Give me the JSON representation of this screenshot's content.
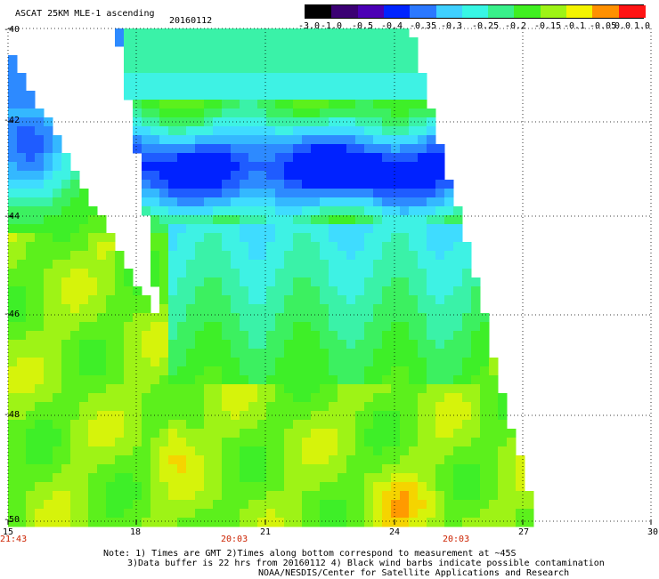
{
  "header": {
    "title": "ASCAT 25KM MLE-1 ascending",
    "date": "20160112"
  },
  "colorbar": {
    "labels": [
      "-3.0",
      "-1.0",
      "-0.5",
      "-0.4",
      "-0.35",
      "-0.3",
      "-0.25",
      "-0.2",
      "-0.15",
      "-0.1",
      "-0.05",
      "0.0",
      "1.0"
    ],
    "colors": [
      "#000000",
      "#3b0073",
      "#4b00b5",
      "#0024ff",
      "#2b78ff",
      "#3fd0ff",
      "#38f6e4",
      "#39f08a",
      "#40ef21",
      "#9ef316",
      "#f3f300",
      "#ff9000",
      "#ff1414"
    ]
  },
  "map": {
    "lon_labels": [
      "15",
      "18",
      "21",
      "24",
      "27",
      "30"
    ],
    "lat_labels": [
      "-40",
      "-42",
      "-44",
      "-46",
      "-48",
      "-50"
    ],
    "lon_range": [
      15,
      30
    ],
    "lat_range": [
      -40,
      -50
    ],
    "times": [
      "21:43",
      "20:03",
      "20:03"
    ],
    "time_color": "#cc2200",
    "grid_color": "#000000"
  },
  "notes": {
    "line1": "Note: 1) Times are GMT 2)Times along bottom correspond to measurement at ~45S",
    "line2": "3)Data buffer is 22 hrs from 20160112 4) Black wind barbs indicate possible contamination",
    "line3": "NOAA/NESDIS/Center for Satellite Applications and Research"
  }
}
